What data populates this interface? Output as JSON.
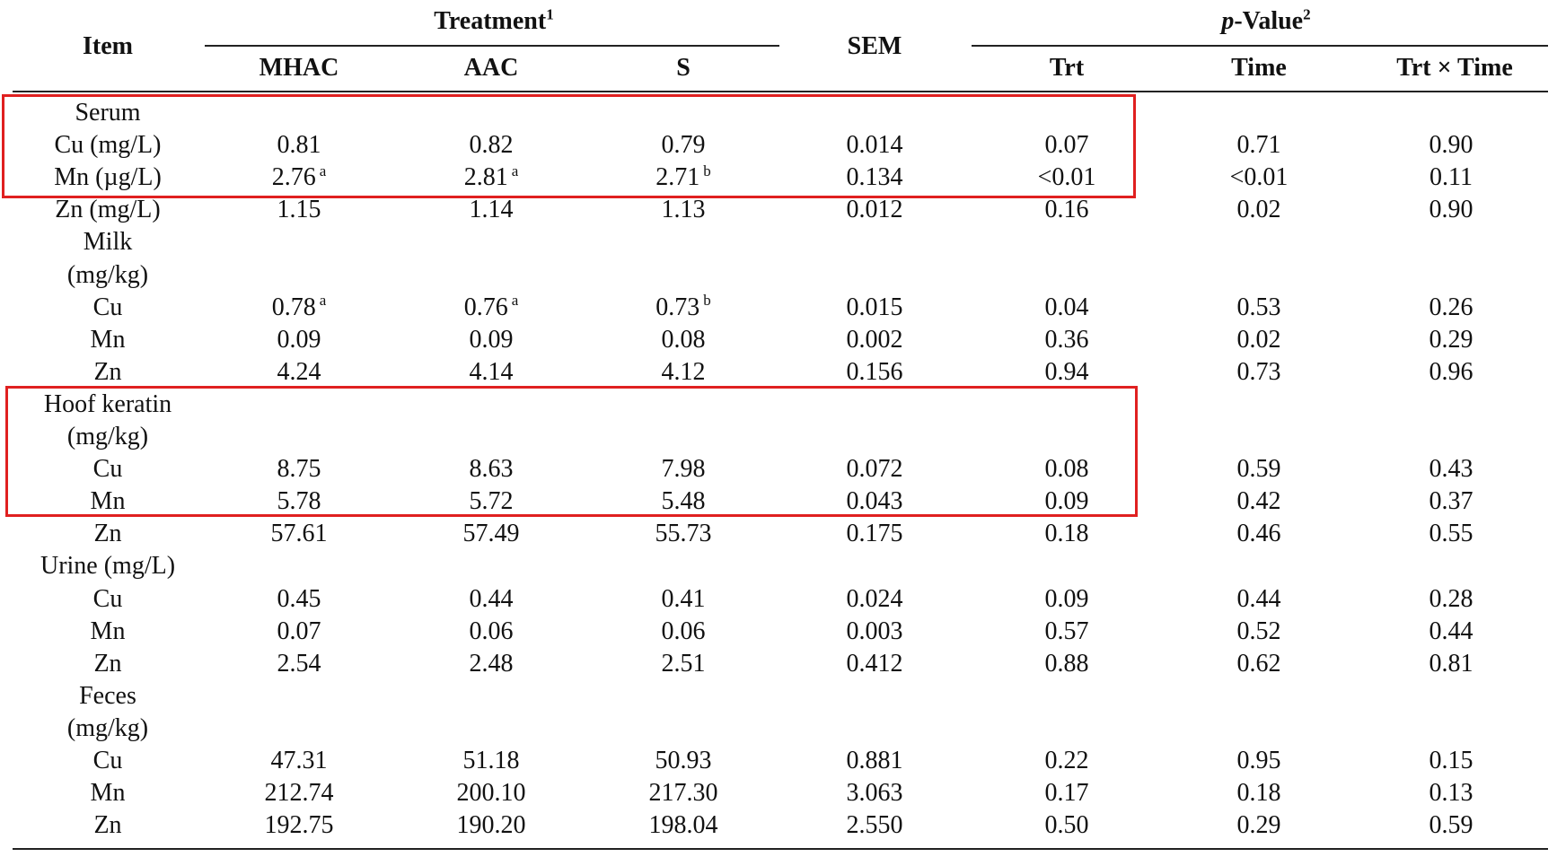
{
  "headers": {
    "item": "Item",
    "treatment": "Treatment",
    "treatment_sup": "1",
    "sem": "SEM",
    "pvalue_italic": "p",
    "pvalue_rest": "-Value",
    "pvalue_sup": "2",
    "cols": [
      "MHAC",
      "AAC",
      "S"
    ],
    "pcols": [
      "Trt",
      "Time",
      "Trt × Time"
    ]
  },
  "rows": [
    {
      "item": "Serum",
      "v": [
        "",
        "",
        "",
        "",
        "",
        "",
        ""
      ],
      "s": [
        "",
        "",
        ""
      ]
    },
    {
      "item": "Cu (mg/L)",
      "v": [
        "0.81",
        "0.82",
        "0.79",
        "0.014",
        "0.07",
        "0.71",
        "0.90"
      ],
      "s": [
        "",
        "",
        ""
      ]
    },
    {
      "item": "Mn (µg/L)",
      "v": [
        "2.76",
        "2.81",
        "2.71",
        "0.134",
        "<0.01",
        "<0.01",
        "0.11"
      ],
      "s": [
        "a",
        "a",
        "b"
      ]
    },
    {
      "item": "Zn (mg/L)",
      "v": [
        "1.15",
        "1.14",
        "1.13",
        "0.012",
        "0.16",
        "0.02",
        "0.90"
      ],
      "s": [
        "",
        "",
        ""
      ]
    },
    {
      "item": "Milk",
      "v": [
        "",
        "",
        "",
        "",
        "",
        "",
        ""
      ],
      "s": [
        "",
        "",
        ""
      ]
    },
    {
      "item": "(mg/kg)",
      "v": [
        "",
        "",
        "",
        "",
        "",
        "",
        ""
      ],
      "s": [
        "",
        "",
        ""
      ]
    },
    {
      "item": "Cu",
      "v": [
        "0.78",
        "0.76",
        "0.73",
        "0.015",
        "0.04",
        "0.53",
        "0.26"
      ],
      "s": [
        "a",
        "a",
        "b"
      ]
    },
    {
      "item": "Mn",
      "v": [
        "0.09",
        "0.09",
        "0.08",
        "0.002",
        "0.36",
        "0.02",
        "0.29"
      ],
      "s": [
        "",
        "",
        ""
      ]
    },
    {
      "item": "Zn",
      "v": [
        "4.24",
        "4.14",
        "4.12",
        "0.156",
        "0.94",
        "0.73",
        "0.96"
      ],
      "s": [
        "",
        "",
        ""
      ]
    },
    {
      "item": "Hoof keratin",
      "v": [
        "",
        "",
        "",
        "",
        "",
        "",
        ""
      ],
      "s": [
        "",
        "",
        ""
      ]
    },
    {
      "item": "(mg/kg)",
      "v": [
        "",
        "",
        "",
        "",
        "",
        "",
        ""
      ],
      "s": [
        "",
        "",
        ""
      ]
    },
    {
      "item": "Cu",
      "v": [
        "8.75",
        "8.63",
        "7.98",
        "0.072",
        "0.08",
        "0.59",
        "0.43"
      ],
      "s": [
        "",
        "",
        ""
      ]
    },
    {
      "item": "Mn",
      "v": [
        "5.78",
        "5.72",
        "5.48",
        "0.043",
        "0.09",
        "0.42",
        "0.37"
      ],
      "s": [
        "",
        "",
        ""
      ]
    },
    {
      "item": "Zn",
      "v": [
        "57.61",
        "57.49",
        "55.73",
        "0.175",
        "0.18",
        "0.46",
        "0.55"
      ],
      "s": [
        "",
        "",
        ""
      ]
    },
    {
      "item": "Urine (mg/L)",
      "v": [
        "",
        "",
        "",
        "",
        "",
        "",
        ""
      ],
      "s": [
        "",
        "",
        ""
      ]
    },
    {
      "item": "Cu",
      "v": [
        "0.45",
        "0.44",
        "0.41",
        "0.024",
        "0.09",
        "0.44",
        "0.28"
      ],
      "s": [
        "",
        "",
        ""
      ]
    },
    {
      "item": "Mn",
      "v": [
        "0.07",
        "0.06",
        "0.06",
        "0.003",
        "0.57",
        "0.52",
        "0.44"
      ],
      "s": [
        "",
        "",
        ""
      ]
    },
    {
      "item": "Zn",
      "v": [
        "2.54",
        "2.48",
        "2.51",
        "0.412",
        "0.88",
        "0.62",
        "0.81"
      ],
      "s": [
        "",
        "",
        ""
      ]
    },
    {
      "item": "Feces",
      "v": [
        "",
        "",
        "",
        "",
        "",
        "",
        ""
      ],
      "s": [
        "",
        "",
        ""
      ]
    },
    {
      "item": "(mg/kg)",
      "v": [
        "",
        "",
        "",
        "",
        "",
        "",
        ""
      ],
      "s": [
        "",
        "",
        ""
      ]
    },
    {
      "item": "Cu",
      "v": [
        "47.31",
        "51.18",
        "50.93",
        "0.881",
        "0.22",
        "0.95",
        "0.15"
      ],
      "s": [
        "",
        "",
        ""
      ]
    },
    {
      "item": "Mn",
      "v": [
        "212.74",
        "200.10",
        "217.30",
        "3.063",
        "0.17",
        "0.18",
        "0.13"
      ],
      "s": [
        "",
        "",
        ""
      ]
    },
    {
      "item": "Zn",
      "v": [
        "192.75",
        "190.20",
        "198.04",
        "2.550",
        "0.50",
        "0.29",
        "0.59"
      ],
      "s": [
        "",
        "",
        ""
      ]
    }
  ],
  "highlight_color": "#e02020"
}
